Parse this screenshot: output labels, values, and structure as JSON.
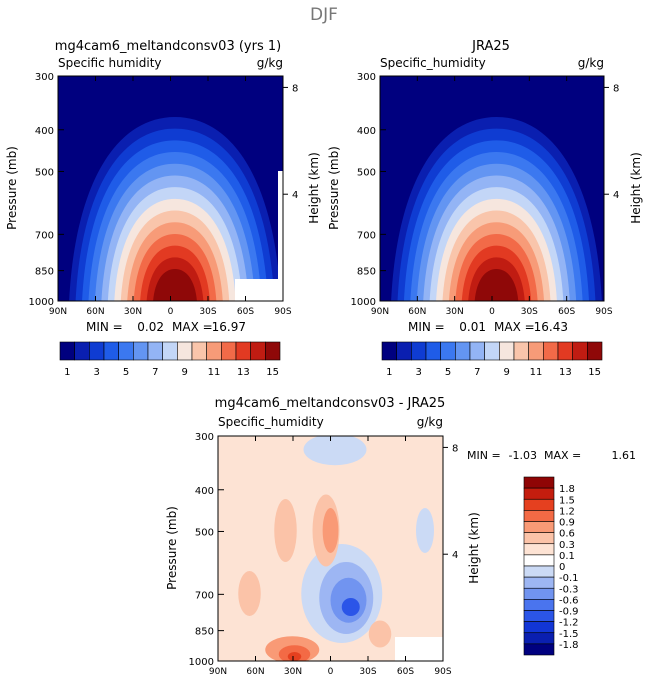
{
  "page_title": "DJF",
  "colors": {
    "humidity_scale": [
      "#00007f",
      "#0a1fb0",
      "#0f3cd2",
      "#1f5ce8",
      "#3b78f0",
      "#6395f2",
      "#93b4f5",
      "#c3d6f7",
      "#f6e6de",
      "#f9c5ab",
      "#f79b78",
      "#f26a48",
      "#e23a22",
      "#c01c12",
      "#8f0808"
    ],
    "diff_scale": [
      "#00007f",
      "#0a1fb0",
      "#1236d6",
      "#2b55e8",
      "#4a74ee",
      "#7194f0",
      "#9db6f3",
      "#cbdaf5",
      "#ffffff",
      "#fde3d4",
      "#fbc3a8",
      "#f99a76",
      "#f36a45",
      "#e5401f",
      "#c41d0e",
      "#8f0505"
    ]
  },
  "chart_data": [
    {
      "type": "heatmap",
      "title": "mg4cam6_meltandconsv03 (yrs 1)",
      "variable_label": "Specific humidity",
      "units_label": "g/kg",
      "ylabel": "Pressure (mb)",
      "ylabel_right": "Height (km)",
      "x_ticks": [
        "90N",
        "60N",
        "30N",
        "0",
        "30S",
        "60S",
        "90S"
      ],
      "y_ticks": [
        300,
        400,
        500,
        700,
        850,
        1000
      ],
      "y_right_ticks": [
        8,
        4
      ],
      "min_label": "MIN =",
      "min": "0.02",
      "max_label": "MAX =",
      "max": "16.97",
      "colorbar_labels": [
        "1",
        "3",
        "5",
        "7",
        "9",
        "11",
        "13",
        "15"
      ]
    },
    {
      "type": "heatmap",
      "title": "JRA25",
      "variable_label": "Specific_humidity",
      "units_label": "g/kg",
      "ylabel": "Pressure (mb)",
      "ylabel_right": "Height (km)",
      "x_ticks": [
        "90N",
        "60N",
        "30N",
        "0",
        "30S",
        "60S",
        "90S"
      ],
      "y_ticks": [
        300,
        400,
        500,
        700,
        850,
        1000
      ],
      "y_right_ticks": [
        8,
        4
      ],
      "min_label": "MIN =",
      "min": "0.01",
      "max_label": "MAX =",
      "max": "16.43",
      "colorbar_labels": [
        "1",
        "3",
        "5",
        "7",
        "9",
        "11",
        "13",
        "15"
      ]
    },
    {
      "type": "heatmap",
      "title": "mg4cam6_meltandconsv03 - JRA25",
      "variable_label": "Specific_humidity",
      "units_label": "g/kg",
      "ylabel": "Pressure (mb)",
      "ylabel_right": "Height (km)",
      "x_ticks": [
        "90N",
        "60N",
        "30N",
        "0",
        "30S",
        "60S",
        "90S"
      ],
      "y_ticks": [
        300,
        400,
        500,
        700,
        850,
        1000
      ],
      "y_right_ticks": [
        8,
        4
      ],
      "min_label": "MIN =",
      "min": "-1.03",
      "max_label": "MAX =",
      "max": "1.61",
      "colorbar_labels": [
        "1.8",
        "1.5",
        "1.2",
        "0.9",
        "0.6",
        "0.3",
        "0.1",
        "0",
        "-0.1",
        "-0.3",
        "-0.6",
        "-0.9",
        "-1.2",
        "-1.5",
        "-1.8"
      ]
    }
  ]
}
